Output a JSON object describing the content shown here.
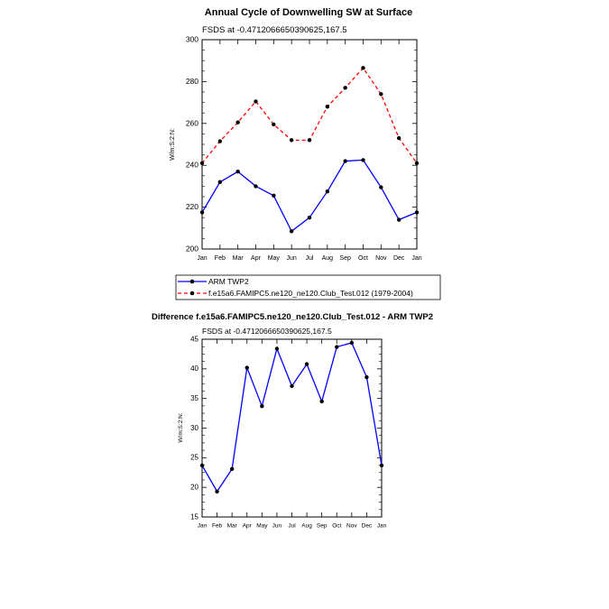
{
  "chart_data": [
    {
      "type": "line",
      "title": "Annual Cycle of Downwelling SW at Surface",
      "subtitle": "FSDS at -0.4712066650390625,167.5",
      "ylabel": "W/m:S:2:N:",
      "xlabel": "",
      "categories": [
        "Jan",
        "Feb",
        "Mar",
        "Apr",
        "May",
        "Jun",
        "Jul",
        "Aug",
        "Sep",
        "Oct",
        "Nov",
        "Dec",
        "Jan"
      ],
      "ylim": [
        200,
        300
      ],
      "yticks": [
        200,
        220,
        240,
        260,
        280,
        300
      ],
      "ytick_labels": [
        "200",
        "220",
        "240",
        "260",
        "280",
        "300"
      ],
      "grid": false,
      "legend_position": "bottom",
      "series": [
        {
          "name": "ARM TWP2",
          "color": "#0000ff",
          "dash": "solid",
          "values": [
            217.5,
            232.0,
            237.0,
            230.0,
            225.5,
            208.5,
            215.0,
            227.5,
            242.0,
            242.5,
            229.5,
            214.0,
            217.5
          ]
        },
        {
          "name": "f.e15a6.FAMIPC5.ne120_ne120.Club_Test.012 (1979-2004)",
          "color": "#ff0000",
          "dash": "dashed",
          "values": [
            241.0,
            251.5,
            260.5,
            270.5,
            259.5,
            252.0,
            252.0,
            268.0,
            277.0,
            286.5,
            274.0,
            253.0,
            241.0
          ]
        }
      ]
    },
    {
      "type": "line",
      "title": "Difference f.e15a6.FAMIPC5.ne120_ne120.Club_Test.012 - ARM TWP2",
      "subtitle": "FSDS at -0.4712066650390625,167.5",
      "ylabel": "W/m:S:2:N:",
      "xlabel": "",
      "categories": [
        "Jan",
        "Feb",
        "Mar",
        "Apr",
        "May",
        "Jun",
        "Jul",
        "Aug",
        "Sep",
        "Oct",
        "Nov",
        "Dec",
        "Jan"
      ],
      "ylim": [
        15,
        45
      ],
      "yticks": [
        15,
        20,
        25,
        30,
        35,
        40,
        45
      ],
      "ytick_labels": [
        "15",
        "20",
        "25",
        "30",
        "35",
        "40",
        "45"
      ],
      "grid": false,
      "series": [
        {
          "color": "#0000ff",
          "dash": "solid",
          "values": [
            23.7,
            19.3,
            23.1,
            40.2,
            33.7,
            43.4,
            37.1,
            40.8,
            34.5,
            43.7,
            44.4,
            38.6,
            23.7
          ]
        }
      ]
    }
  ]
}
